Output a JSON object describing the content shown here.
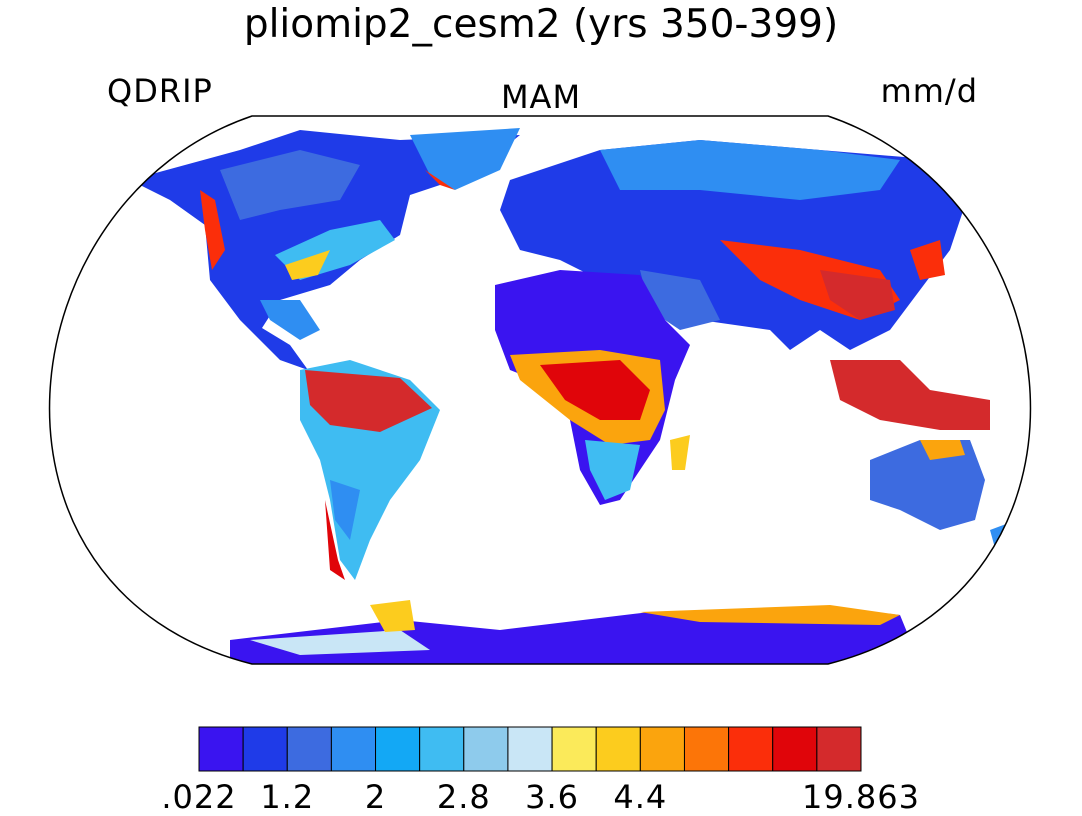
{
  "title": "pliomip2_cesm2 (yrs 350-399)",
  "labels": {
    "variable": "QDRIP",
    "season": "MAM",
    "units": "mm/d"
  },
  "colorbar": {
    "colors": [
      "#3a14f0",
      "#1f3be8",
      "#3d6be0",
      "#2f8ef2",
      "#13a8f5",
      "#3fbcf2",
      "#8ecbec",
      "#c9e6f6",
      "#fbea5a",
      "#fccc1e",
      "#fba40d",
      "#fc7508",
      "#fb2e0a",
      "#e0050a",
      "#d42a2c"
    ],
    "tick_labels": [
      ".022",
      "1.2",
      "2",
      "2.8",
      "3.6",
      "4.4",
      "19.863"
    ]
  }
}
